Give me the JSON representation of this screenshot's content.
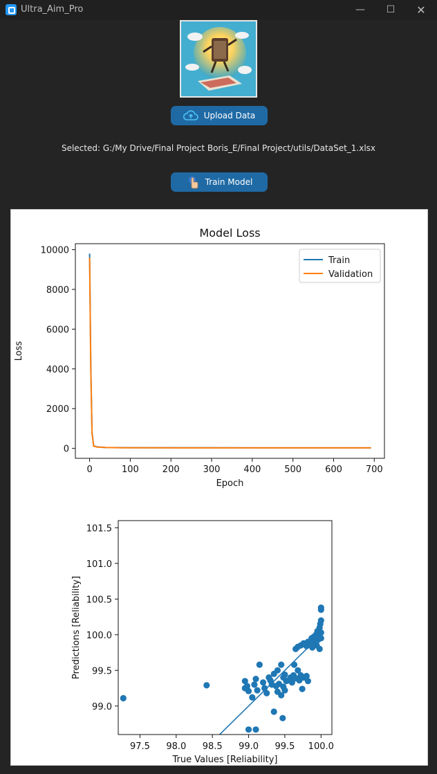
{
  "window": {
    "title": "Ultra_Aim_Pro",
    "min_icon": "minimize-icon",
    "max_icon": "maximize-icon",
    "close_icon": "close-icon"
  },
  "upload_button": {
    "label": "Upload Data",
    "icon": "cloud-upload-icon"
  },
  "selected_text": "Selected: G:/My Drive/Final Project Boris_E/Final Project/utils/DataSet_1.xlsx",
  "train_button": {
    "label": "Train Model",
    "icon": "hand-pointer-icon"
  },
  "colors": {
    "train": "#1f77b4",
    "validation": "#ff7f0e",
    "button": "#1f6aa5"
  },
  "chart_data": [
    {
      "type": "line",
      "title": "Model Loss",
      "xlabel": "Epoch",
      "ylabel": "Loss",
      "xlim": [
        -35,
        725
      ],
      "ylim": [
        -500,
        10300
      ],
      "xticks": [
        0,
        100,
        200,
        300,
        400,
        500,
        600,
        700
      ],
      "yticks": [
        0,
        2000,
        4000,
        6000,
        8000,
        10000
      ],
      "legend": "top-right",
      "series": [
        {
          "name": "Train",
          "x": [
            0,
            3,
            6,
            10,
            20,
            40,
            80,
            150,
            300,
            500,
            692
          ],
          "values": [
            9800,
            4200,
            800,
            120,
            70,
            45,
            35,
            30,
            28,
            27,
            26
          ]
        },
        {
          "name": "Validation",
          "x": [
            0,
            3,
            6,
            10,
            20,
            40,
            80,
            150,
            300,
            500,
            692
          ],
          "values": [
            9600,
            4000,
            750,
            110,
            65,
            42,
            33,
            29,
            27,
            26,
            25
          ]
        }
      ]
    },
    {
      "type": "scatter",
      "xlabel": "True Values [Reliability]",
      "ylabel": "Predictions [Reliability]",
      "xlim": [
        97.2,
        100.15
      ],
      "ylim": [
        98.6,
        101.6
      ],
      "xticks": [
        97.5,
        98.0,
        98.5,
        99.0,
        99.5,
        100.0
      ],
      "yticks": [
        99.0,
        99.5,
        100.0,
        100.5,
        101.0,
        101.5
      ],
      "grid": false,
      "reference_line": [
        [
          98.5,
          98.5
        ],
        [
          100.0,
          100.0
        ]
      ],
      "points": [
        [
          97.27,
          99.11
        ],
        [
          98.42,
          99.29
        ],
        [
          98.95,
          99.35
        ],
        [
          98.98,
          99.28
        ],
        [
          99.0,
          99.21
        ],
        [
          99.05,
          99.12
        ],
        [
          99.08,
          99.3
        ],
        [
          99.1,
          99.38
        ],
        [
          99.15,
          99.58
        ],
        [
          99.12,
          99.22
        ],
        [
          99.2,
          99.33
        ],
        [
          99.22,
          99.25
        ],
        [
          99.25,
          99.18
        ],
        [
          99.28,
          99.4
        ],
        [
          99.3,
          99.36
        ],
        [
          99.32,
          99.3
        ],
        [
          99.35,
          99.45
        ],
        [
          99.38,
          99.28
        ],
        [
          99.4,
          99.5
        ],
        [
          99.4,
          99.2
        ],
        [
          99.42,
          99.31
        ],
        [
          99.45,
          99.58
        ],
        [
          99.45,
          99.15
        ],
        [
          99.48,
          99.27
        ],
        [
          99.48,
          99.4
        ],
        [
          99.5,
          99.22
        ],
        [
          99.5,
          99.44
        ],
        [
          99.52,
          99.35
        ],
        [
          99.55,
          99.36
        ],
        [
          99.58,
          99.4
        ],
        [
          99.6,
          99.33
        ],
        [
          99.62,
          99.43
        ],
        [
          99.63,
          99.58
        ],
        [
          99.65,
          99.39
        ],
        [
          99.68,
          99.5
        ],
        [
          99.7,
          99.36
        ],
        [
          99.72,
          99.43
        ],
        [
          99.74,
          99.24
        ],
        [
          99.75,
          99.4
        ],
        [
          99.78,
          99.4
        ],
        [
          99.8,
          99.42
        ],
        [
          99.82,
          99.35
        ],
        [
          99.65,
          99.8
        ],
        [
          99.68,
          99.83
        ],
        [
          99.72,
          99.85
        ],
        [
          99.76,
          99.88
        ],
        [
          99.8,
          99.84
        ],
        [
          99.82,
          99.9
        ],
        [
          99.85,
          99.87
        ],
        [
          99.87,
          99.95
        ],
        [
          99.88,
          99.82
        ],
        [
          99.9,
          99.97
        ],
        [
          99.92,
          99.9
        ],
        [
          99.93,
          100.0
        ],
        [
          99.94,
          99.85
        ],
        [
          99.95,
          100.05
        ],
        [
          99.96,
          99.93
        ],
        [
          99.97,
          99.98
        ],
        [
          99.98,
          100.1
        ],
        [
          99.98,
          99.8
        ],
        [
          99.99,
          100.15
        ],
        [
          100.0,
          100.2
        ],
        [
          100.0,
          99.95
        ],
        [
          100.0,
          100.03
        ],
        [
          100.0,
          100.35
        ],
        [
          100.0,
          100.38
        ],
        [
          99.1,
          98.67
        ],
        [
          99.0,
          98.67
        ],
        [
          99.35,
          98.92
        ],
        [
          99.47,
          98.83
        ],
        [
          98.95,
          99.25
        ],
        [
          99.3,
          99.36
        ]
      ]
    }
  ]
}
